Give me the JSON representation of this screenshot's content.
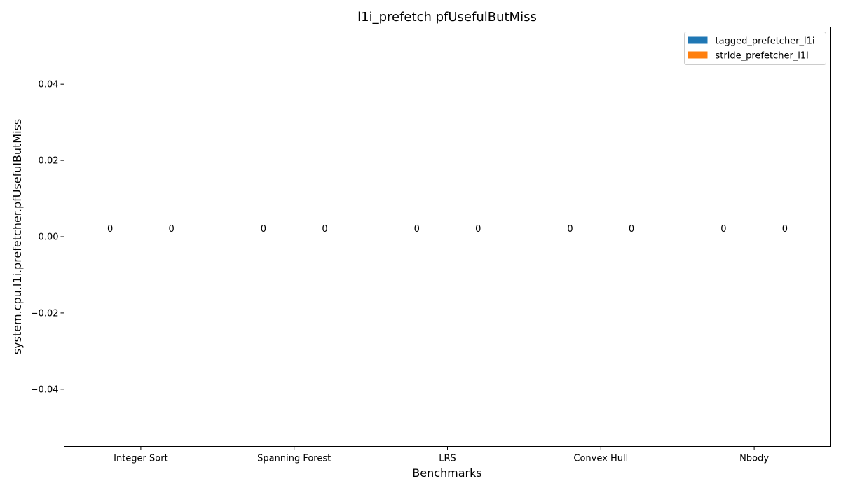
{
  "chart_data": {
    "type": "bar",
    "title": "l1i_prefetch pfUsefulButMiss",
    "xlabel": "Benchmarks",
    "ylabel": "system.cpu.l1i.prefetcher.pfUsefulButMiss",
    "categories": [
      "Integer Sort",
      "Spanning Forest",
      "LRS",
      "Convex Hull",
      "Nbody"
    ],
    "series": [
      {
        "name": "tagged_prefetcher_l1i",
        "color": "#1f77b4",
        "values": [
          0,
          0,
          0,
          0,
          0
        ],
        "labels": [
          "0",
          "0",
          "0",
          "0",
          "0"
        ]
      },
      {
        "name": "stride_prefetcher_l1i",
        "color": "#ff7f0e",
        "values": [
          0,
          0,
          0,
          0,
          0
        ],
        "labels": [
          "0",
          "0",
          "0",
          "0",
          "0"
        ]
      }
    ],
    "ylim": [
      -0.055,
      0.055
    ],
    "yticks": [
      -0.04,
      -0.02,
      0.0,
      0.02,
      0.04
    ],
    "ytick_labels": [
      "−0.04",
      "−0.02",
      "0.00",
      "0.02",
      "0.04"
    ],
    "legend": "top-right",
    "grid": false
  }
}
